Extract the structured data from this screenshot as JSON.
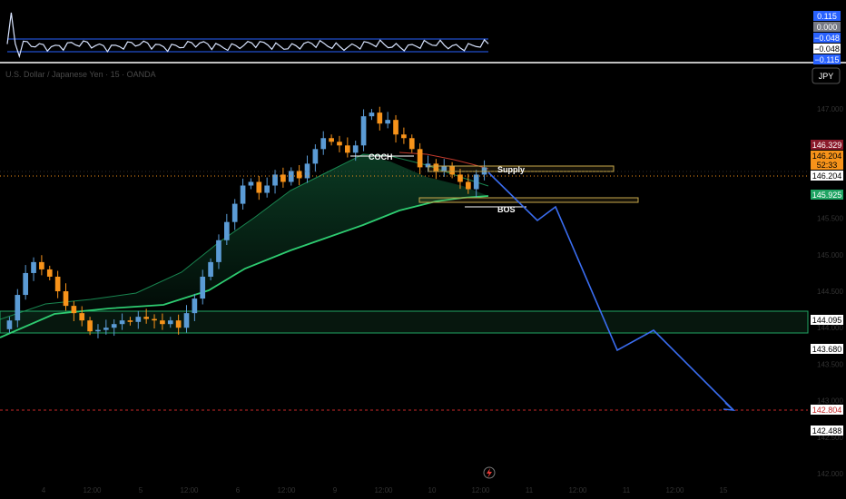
{
  "app": {
    "symbol_title": "U.S. Dollar / Japanese Yen · 15 · OANDA",
    "currency_button": "JPY"
  },
  "oscillator": {
    "scale_labels": [
      "0.115",
      "0.000",
      "−0.048",
      "−0.048",
      "−0.115"
    ],
    "scale_values": [
      0.115,
      0.0,
      -0.048,
      -0.048,
      -0.115
    ],
    "label_colors": [
      "#2962ff",
      "#787b86",
      "#2962ff",
      "#ffffff",
      "#2962ff"
    ]
  },
  "price_axis": {
    "ticks": [
      "147.000",
      "146.500",
      "145.500",
      "145.000",
      "144.500",
      "144.000",
      "143.500",
      "143.000",
      "142.500",
      "142.000"
    ],
    "tick_values": [
      147.0,
      146.5,
      145.5,
      145.0,
      144.5,
      144.0,
      143.5,
      143.0,
      142.5,
      142.0
    ],
    "badges": [
      {
        "text": "146.329",
        "value": 146.329,
        "bg": "#8b1a2b",
        "fg": "#ffffff"
      },
      {
        "text": "146.204",
        "value": 146.204,
        "bg": "#f7931a",
        "fg": "#000000",
        "sub": "52:33"
      },
      {
        "text": "146.204",
        "value": 146.204,
        "bg": "#ffffff",
        "fg": "#000000"
      },
      {
        "text": "145.925",
        "value": 145.925,
        "bg": "#1fa463",
        "fg": "#ffffff"
      },
      {
        "text": "144.095",
        "value": 144.095,
        "bg": "#ffffff",
        "fg": "#000000"
      },
      {
        "text": "143.680",
        "value": 143.68,
        "bg": "#ffffff",
        "fg": "#000000"
      },
      {
        "text": "142.804",
        "value": 142.804,
        "bg": "#ffffff",
        "fg": "#c62828"
      },
      {
        "text": "142.488",
        "value": 142.488,
        "bg": "#ffffff",
        "fg": "#000000"
      }
    ]
  },
  "time_axis": {
    "labels": [
      "4",
      "12:00",
      "5",
      "12:00",
      "6",
      "12:00",
      "9",
      "12:00",
      "10",
      "12:00",
      "11",
      "12:00",
      "11",
      "12:00",
      "15"
    ]
  },
  "annotations": {
    "choch": "COCH",
    "supply": "Supply",
    "bos": "BOS"
  },
  "colors": {
    "up_candle": "#5b9bd5",
    "down_candle": "#f7931a",
    "projection": "#3a6df0",
    "zone": "#c8a84b",
    "ema": "#2ecc71"
  },
  "chart_data": {
    "type": "candlestick",
    "symbol": "USDJPY",
    "timeframe": "15",
    "y_range": [
      141.9,
      147.3
    ],
    "reference_lines": [
      {
        "name": "current",
        "value": 146.204
      },
      {
        "name": "target",
        "value": 142.804
      }
    ],
    "demand_zone": [
      143.95,
      144.095
    ],
    "supply_zone": [
      146.19,
      146.26
    ],
    "bos_zone": [
      145.86,
      145.92
    ],
    "projection": [
      146.15,
      145.7,
      145.92,
      143.68,
      143.87,
      142.804
    ],
    "closes": [
      144.1,
      144.45,
      144.75,
      144.9,
      144.8,
      144.7,
      144.5,
      144.3,
      144.2,
      144.1,
      143.95,
      143.97,
      144.0,
      144.05,
      144.1,
      144.08,
      144.15,
      144.12,
      144.1,
      144.05,
      144.1,
      144.0,
      144.2,
      144.4,
      144.7,
      144.9,
      145.2,
      145.45,
      145.7,
      145.95,
      146.0,
      145.85,
      145.95,
      146.1,
      146.0,
      146.15,
      146.05,
      146.25,
      146.45,
      146.6,
      146.55,
      146.5,
      146.4,
      146.5,
      146.9,
      146.95,
      146.8,
      146.85,
      146.65,
      146.6,
      146.45,
      146.2,
      146.25,
      146.15,
      146.22,
      146.1,
      146.0,
      145.9,
      146.1,
      146.2
    ]
  }
}
